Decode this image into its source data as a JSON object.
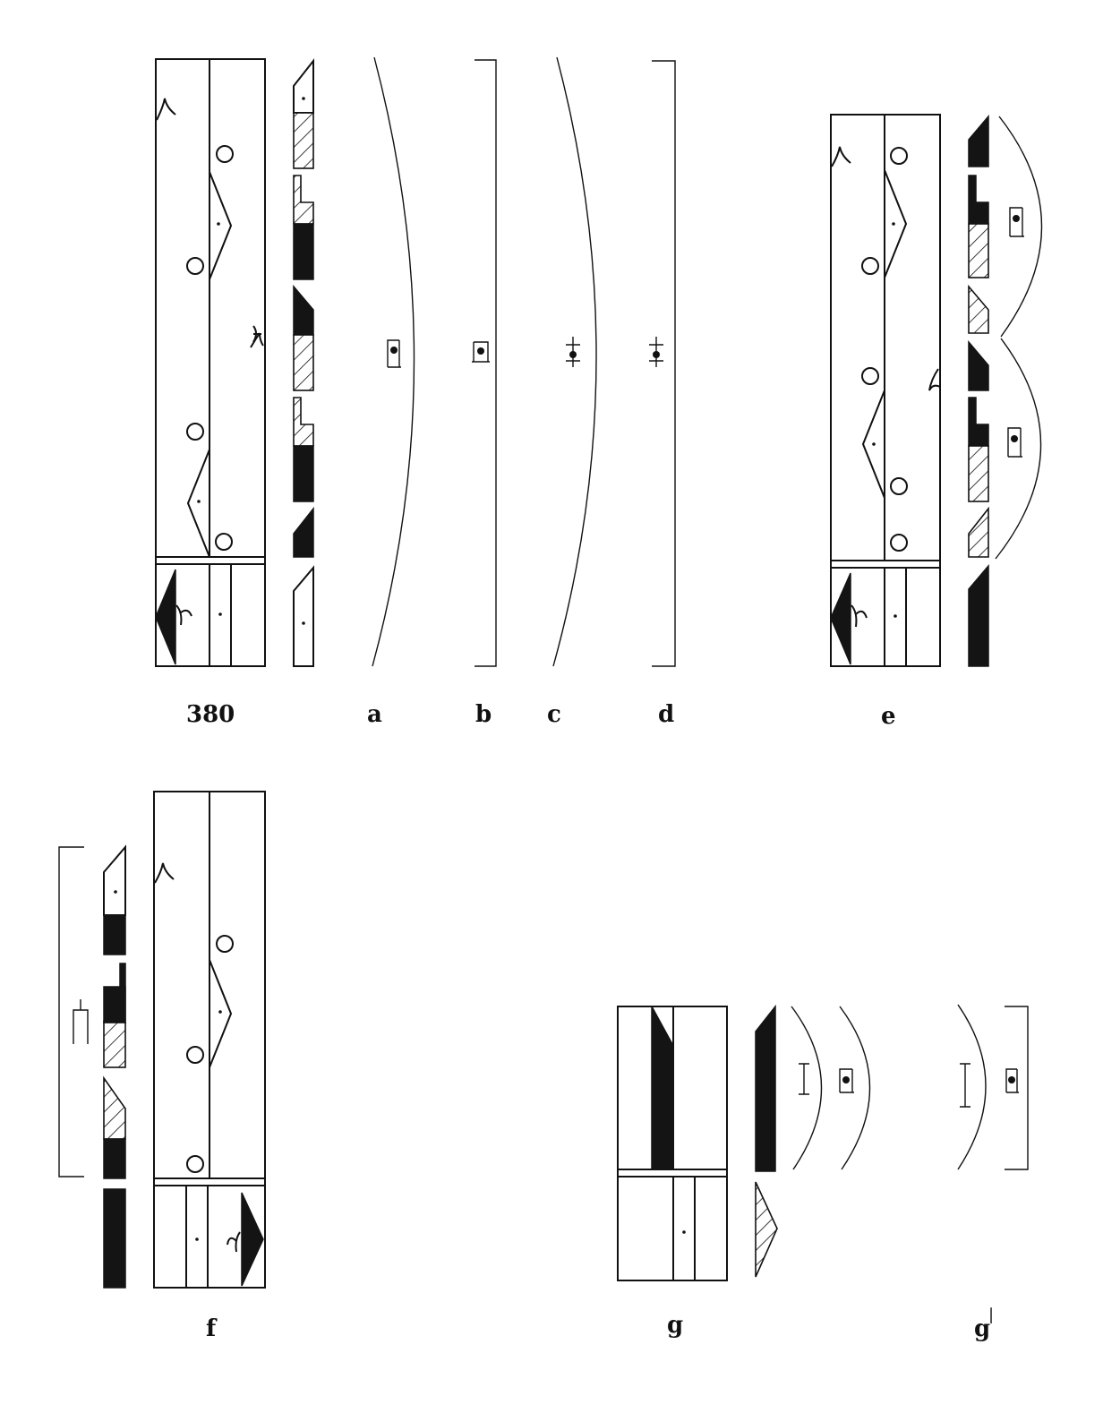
{
  "figure_labels": {
    "main": "380",
    "a": "a",
    "b": "b",
    "c": "c",
    "d": "d",
    "e": "e",
    "f": "f",
    "g": "g",
    "g_prime": "g",
    "g_prime_mark": "|"
  },
  "fill_legend": {
    "solid": "#141414",
    "hatched": "diagonal-hatch",
    "plain": "#ffffff"
  },
  "symbol_names": [
    "circle-mark",
    "y-fork-mark",
    "chevron-triangle",
    "bracket-dot-symbol",
    "arc-span",
    "square-bracket-span"
  ]
}
